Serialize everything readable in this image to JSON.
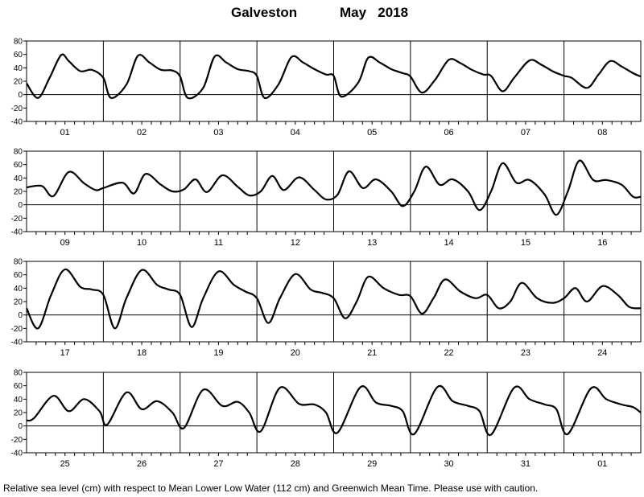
{
  "title": {
    "location": "Galveston",
    "date": "May   2018"
  },
  "footnote": "Relative sea level (cm) with respect to Mean Lower Low Water (112 cm) and Greenwich Mean Time. Please use with caution.",
  "chart_data": {
    "type": "line",
    "y_ticks": [
      "80",
      "60",
      "40",
      "20",
      "0",
      "-20",
      "-40"
    ],
    "ylim": [
      -40,
      80
    ],
    "x_unit": "day",
    "ticks_per_day": 8,
    "grid": "vertical lines at day boundaries, horizontal line at 0",
    "line_color": "#000000",
    "panels": [
      {
        "days": [
          "01",
          "02",
          "03",
          "04",
          "05",
          "06",
          "07",
          "08"
        ],
        "series": [
          {
            "x": [
              0.0,
              0.15,
              0.3,
              0.45,
              0.55,
              0.7,
              0.85,
              1.0,
              1.1,
              1.3,
              1.45,
              1.6,
              1.75,
              1.9,
              2.0,
              2.1,
              2.3,
              2.45,
              2.6,
              2.75,
              2.9,
              3.0,
              3.1,
              3.28,
              3.45,
              3.6,
              3.75,
              3.9,
              4.0,
              4.1,
              4.32,
              4.45,
              4.6,
              4.75,
              4.9,
              5.0,
              5.15,
              5.32,
              5.5,
              5.65,
              5.8,
              5.95,
              6.05,
              6.2,
              6.35,
              6.55,
              6.7,
              6.85,
              7.0,
              7.1,
              7.3,
              7.45,
              7.6,
              7.75,
              7.9,
              8.0
            ],
            "y": [
              17,
              -5,
              25,
              59,
              50,
              35,
              37,
              25,
              -5,
              15,
              58,
              48,
              37,
              36,
              27,
              -5,
              10,
              57,
              48,
              38,
              35,
              28,
              -5,
              15,
              56,
              48,
              38,
              30,
              28,
              -3,
              18,
              55,
              48,
              38,
              32,
              27,
              3,
              22,
              52,
              47,
              37,
              30,
              28,
              5,
              25,
              51,
              45,
              35,
              28,
              25,
              10,
              30,
              50,
              42,
              32,
              27
            ]
          }
        ]
      },
      {
        "days": [
          "09",
          "10",
          "11",
          "12",
          "13",
          "14",
          "15",
          "16"
        ],
        "series": [
          {
            "x": [
              0.0,
              0.2,
              0.35,
              0.55,
              0.75,
              0.9,
              1.0,
              1.25,
              1.4,
              1.55,
              1.75,
              1.9,
              2.05,
              2.2,
              2.35,
              2.55,
              2.75,
              2.9,
              3.05,
              3.2,
              3.35,
              3.55,
              3.75,
              3.9,
              4.05,
              4.2,
              4.38,
              4.55,
              4.75,
              4.9,
              5.05,
              5.2,
              5.38,
              5.55,
              5.75,
              5.9,
              6.05,
              6.2,
              6.38,
              6.55,
              6.75,
              6.9,
              7.05,
              7.2,
              7.38,
              7.55,
              7.75,
              7.9,
              8.0
            ],
            "y": [
              26,
              28,
              13,
              49,
              32,
              22,
              25,
              33,
              17,
              46,
              30,
              20,
              23,
              38,
              19,
              44,
              27,
              14,
              20,
              43,
              22,
              41,
              22,
              8,
              15,
              50,
              25,
              38,
              20,
              -2,
              20,
              57,
              30,
              38,
              20,
              -8,
              20,
              62,
              33,
              37,
              15,
              -15,
              20,
              66,
              37,
              37,
              30,
              12,
              12
            ]
          }
        ]
      },
      {
        "days": [
          "17",
          "18",
          "19",
          "20",
          "21",
          "22",
          "23",
          "24"
        ],
        "series": [
          {
            "x": [
              0.0,
              0.15,
              0.32,
              0.5,
              0.7,
              0.85,
              1.0,
              1.15,
              1.3,
              1.5,
              1.7,
              1.85,
              2.0,
              2.15,
              2.3,
              2.5,
              2.7,
              2.85,
              3.0,
              3.15,
              3.3,
              3.5,
              3.7,
              3.85,
              4.0,
              4.15,
              4.3,
              4.45,
              4.65,
              4.85,
              5.0,
              5.15,
              5.3,
              5.45,
              5.65,
              5.85,
              6.0,
              6.15,
              6.3,
              6.45,
              6.65,
              6.85,
              7.0,
              7.15,
              7.3,
              7.5,
              7.7,
              7.85,
              8.0
            ],
            "y": [
              10,
              -20,
              30,
              68,
              42,
              38,
              30,
              -20,
              25,
              67,
              45,
              38,
              30,
              -18,
              25,
              65,
              45,
              35,
              25,
              -12,
              25,
              61,
              38,
              33,
              25,
              -5,
              20,
              57,
              40,
              30,
              28,
              2,
              25,
              53,
              35,
              25,
              30,
              10,
              20,
              48,
              25,
              18,
              25,
              40,
              20,
              43,
              30,
              12,
              10
            ]
          }
        ]
      },
      {
        "days": [
          "25",
          "26",
          "27",
          "28",
          "29",
          "30",
          "31",
          "01"
        ],
        "series": [
          {
            "x": [
              0.0,
              0.1,
              0.35,
              0.55,
              0.75,
              0.95,
              1.05,
              1.3,
              1.5,
              1.7,
              1.9,
              2.05,
              2.3,
              2.55,
              2.75,
              2.9,
              3.05,
              3.3,
              3.55,
              3.75,
              3.9,
              4.05,
              4.35,
              4.55,
              4.75,
              4.9,
              5.05,
              5.35,
              5.55,
              5.75,
              5.9,
              6.05,
              6.35,
              6.55,
              6.75,
              6.9,
              7.05,
              7.35,
              7.55,
              7.75,
              7.9,
              8.0
            ],
            "y": [
              8,
              12,
              45,
              22,
              40,
              22,
              2,
              50,
              25,
              37,
              20,
              -3,
              54,
              30,
              36,
              20,
              -8,
              57,
              33,
              32,
              20,
              -10,
              58,
              35,
              30,
              22,
              -12,
              58,
              37,
              30,
              22,
              -13,
              57,
              40,
              32,
              25,
              -12,
              56,
              40,
              32,
              28,
              20
            ]
          }
        ]
      }
    ]
  }
}
